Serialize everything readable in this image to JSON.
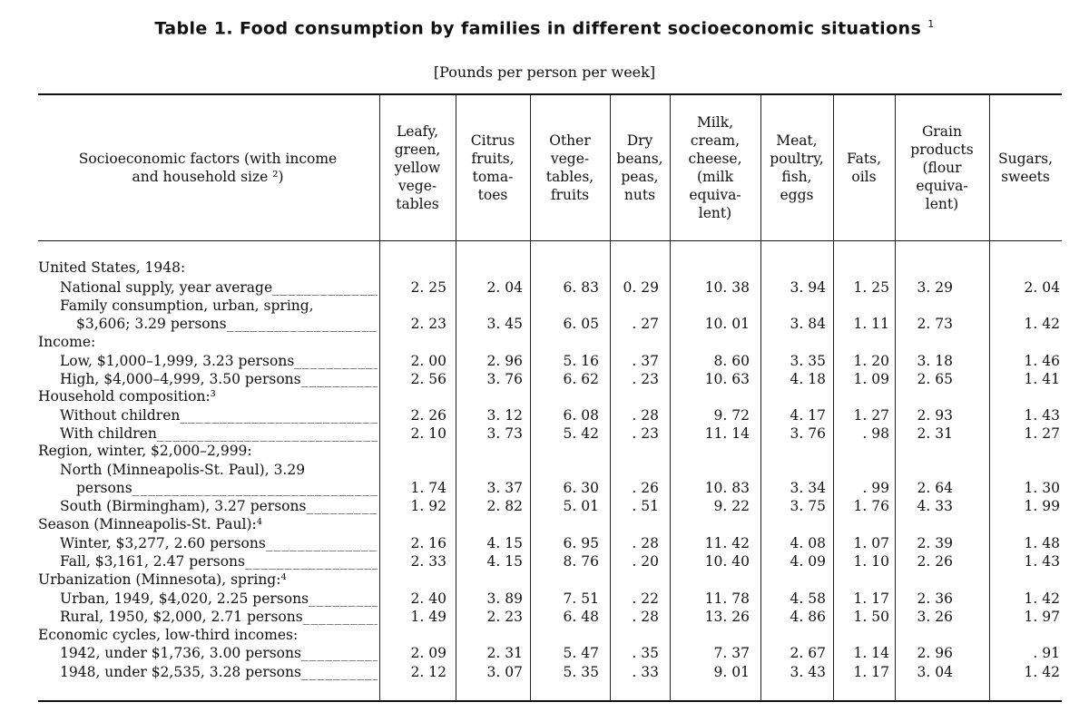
{
  "title": "Table 1.  Food consumption by families in different socioeconomic situations",
  "title_footnote": "1",
  "subtitle": "[Pounds per person per week]",
  "stub_header": "Socioeconomic factors (with income\nand household size ²)",
  "columns": [
    "Leafy,\ngreen,\nyellow\nvege-\ntables",
    "Citrus\nfruits,\ntoma-\ntoes",
    "Other\nvege-\ntables,\nfruits",
    "Dry\nbeans,\npeas,\nnuts",
    "Milk,\ncream,\ncheese,\n(milk\nequiva-\nlent)",
    "Meat,\npoultry,\nfish,\neggs",
    "Fats,\noils",
    "Grain\nproducts\n(flour\nequiva-\nlent)",
    "Sugars,\nsweets"
  ],
  "rows": [
    {
      "label": "United States, 1948:",
      "level": 0,
      "values": null
    },
    {
      "label": "National supply, year average",
      "level": 1,
      "values": [
        "2. 25",
        "2. 04",
        "6. 83",
        "0. 29",
        "10. 38",
        "3. 94",
        "1. 25",
        "3. 29",
        "2. 04"
      ]
    },
    {
      "label": "Family consumption, urban, spring,",
      "level": 1,
      "values": null
    },
    {
      "label": "$3,606; 3.29 persons",
      "level": 2,
      "values": [
        "2. 23",
        "3. 45",
        "6. 05",
        ". 27",
        "10. 01",
        "3. 84",
        "1. 11",
        "2. 73",
        "1. 42"
      ]
    },
    {
      "label": "Income:",
      "level": 0,
      "values": null
    },
    {
      "label": "Low, $1,000–1,999, 3.23 persons",
      "level": 1,
      "values": [
        "2. 00",
        "2. 96",
        "5. 16",
        ". 37",
        "8. 60",
        "3. 35",
        "1. 20",
        "3. 18",
        "1. 46"
      ]
    },
    {
      "label": "High, $4,000–4,999, 3.50 persons",
      "level": 1,
      "values": [
        "2. 56",
        "3. 76",
        "6. 62",
        ". 23",
        "10. 63",
        "4. 18",
        "1. 09",
        "2. 65",
        "1. 41"
      ]
    },
    {
      "label": "Household composition:³",
      "level": 0,
      "values": null
    },
    {
      "label": "Without children",
      "level": 1,
      "values": [
        "2. 26",
        "3. 12",
        "6. 08",
        ". 28",
        "9. 72",
        "4. 17",
        "1. 27",
        "2. 93",
        "1. 43"
      ]
    },
    {
      "label": "With children",
      "level": 1,
      "values": [
        "2. 10",
        "3. 73",
        "5. 42",
        ". 23",
        "11. 14",
        "3. 76",
        ". 98",
        "2. 31",
        "1. 27"
      ]
    },
    {
      "label": "Region, winter, $2,000–2,999:",
      "level": 0,
      "values": null
    },
    {
      "label": "North (Minneapolis-St. Paul), 3.29",
      "level": 1,
      "values": null
    },
    {
      "label": "persons",
      "level": 2,
      "values": [
        "1. 74",
        "3. 37",
        "6. 30",
        ". 26",
        "10. 83",
        "3. 34",
        ". 99",
        "2. 64",
        "1. 30"
      ]
    },
    {
      "label": "South (Birmingham), 3.27 persons",
      "level": 1,
      "values": [
        "1. 92",
        "2. 82",
        "5. 01",
        ". 51",
        "9. 22",
        "3. 75",
        "1. 76",
        "4. 33",
        "1. 99"
      ]
    },
    {
      "label": "Season (Minneapolis-St. Paul):⁴",
      "level": 0,
      "values": null
    },
    {
      "label": "Winter, $3,277, 2.60 persons",
      "level": 1,
      "values": [
        "2. 16",
        "4. 15",
        "6. 95",
        ". 28",
        "11. 42",
        "4. 08",
        "1. 07",
        "2. 39",
        "1. 48"
      ]
    },
    {
      "label": "Fall, $3,161, 2.47 persons",
      "level": 1,
      "values": [
        "2. 33",
        "4. 15",
        "8. 76",
        ". 20",
        "10. 40",
        "4. 09",
        "1. 10",
        "2. 26",
        "1. 43"
      ]
    },
    {
      "label": "Urbanization (Minnesota), spring:⁴",
      "level": 0,
      "values": null
    },
    {
      "label": "Urban, 1949, $4,020, 2.25 persons",
      "level": 1,
      "values": [
        "2. 40",
        "3. 89",
        "7. 51",
        ". 22",
        "11. 78",
        "4. 58",
        "1. 17",
        "2. 36",
        "1. 42"
      ]
    },
    {
      "label": "Rural, 1950, $2,000, 2.71 persons",
      "level": 1,
      "values": [
        "1. 49",
        "2. 23",
        "6. 48",
        ". 28",
        "13. 26",
        "4. 86",
        "1. 50",
        "3. 26",
        "1. 97"
      ]
    },
    {
      "label": "Economic cycles, low-third incomes:",
      "level": 0,
      "values": null
    },
    {
      "label": "1942, under $1,736, 3.00 persons",
      "level": 1,
      "values": [
        "2. 09",
        "2. 31",
        "5. 47",
        ". 35",
        "7. 37",
        "2. 67",
        "1. 14",
        "2. 96",
        ". 91"
      ]
    },
    {
      "label": "1948, under $2,535, 3.28 persons",
      "level": 1,
      "values": [
        "2. 12",
        "3. 07",
        "5. 35",
        ". 33",
        "9. 01",
        "3. 43",
        "1. 17",
        "3. 04",
        "1. 42"
      ]
    }
  ]
}
